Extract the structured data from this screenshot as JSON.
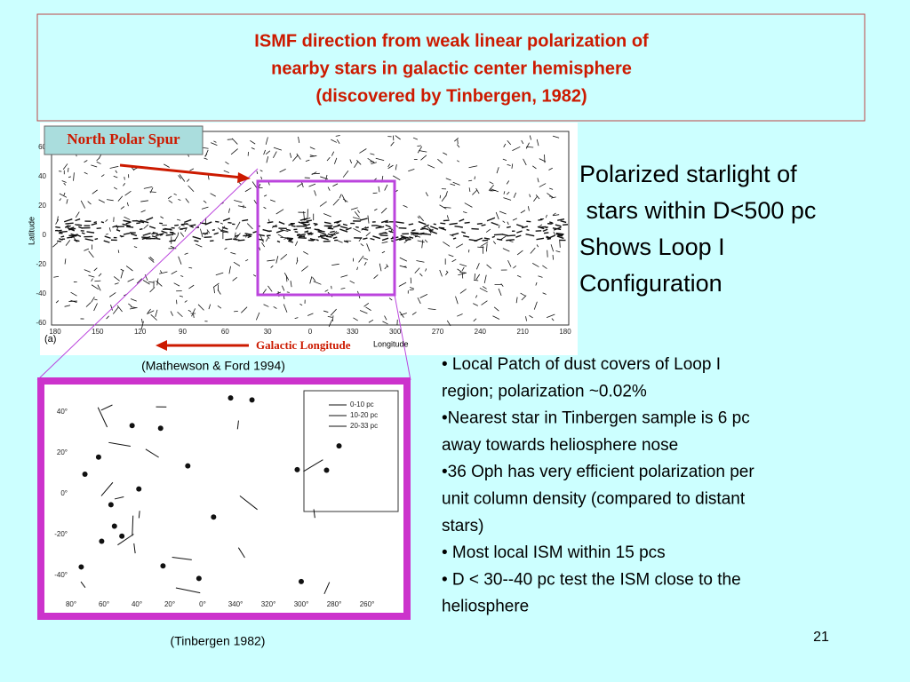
{
  "header": {
    "title_lines": [
      "ISMF direction from weak linear polarization of",
      "nearby stars in galactic center hemisphere",
      "(discovered by Tinbergen, 1982)"
    ]
  },
  "top_figure": {
    "label": "North Polar Spur",
    "x_axis_label": "Galactic Longitude",
    "x_axis_name": "Longitude",
    "y_axis_name": "Latitude",
    "panel": "(a)",
    "x_ticks": [
      "180",
      "150",
      "120",
      "90",
      "60",
      "30",
      "0",
      "330",
      "300",
      "270",
      "240",
      "210",
      "180"
    ],
    "y_ticks": [
      "60",
      "40",
      "20",
      "0",
      "-20",
      "-40",
      "-60"
    ],
    "caption": "(Mathewson & Ford  1994)"
  },
  "bottom_figure": {
    "x_ticks": [
      "80°",
      "60°",
      "40°",
      "20°",
      "0°",
      "340°",
      "320°",
      "300°",
      "280°",
      "260°"
    ],
    "y_ticks": [
      "40°",
      "20°",
      "0°",
      "-20°",
      "-40°"
    ],
    "legend": [
      "0-10 pc",
      "10-20 pc",
      "20-33 pc"
    ],
    "caption": "(Tinbergen 1982)"
  },
  "side_text": [
    "Polarized starlight of",
    " stars within D<500 pc",
    "Shows Loop I",
    "Configuration"
  ],
  "bullets": [
    [
      "• Local Patch of dust covers of Loop I",
      "region; polarization ~0.02%"
    ],
    [
      "•Nearest star in Tinbergen sample is 6 pc",
      "away towards heliosphere nose"
    ],
    [
      "•36 Oph has very efficient polarization per",
      "unit column density (compared to distant",
      "stars)"
    ],
    [
      "• Most local ISM within 15 pcs"
    ],
    [
      "• D < 30--40 pc test the ISM close to the",
      "heliosphere"
    ]
  ],
  "page_number": "21"
}
